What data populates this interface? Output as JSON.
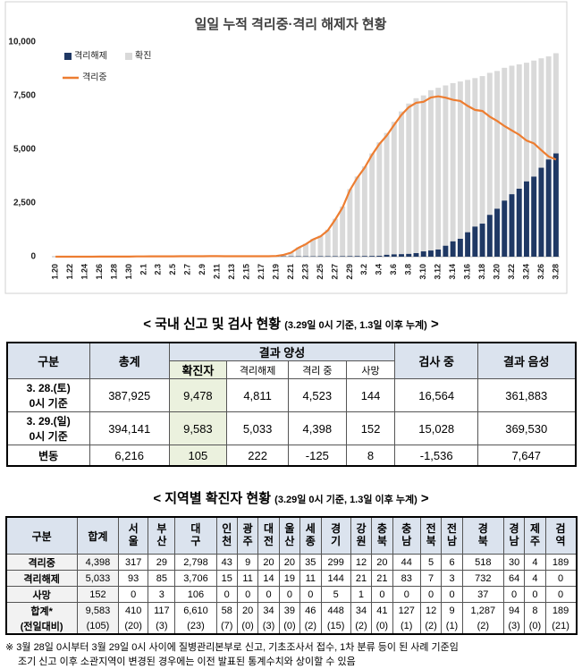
{
  "chart_data": {
    "type": "bar",
    "title": "일일 누적 격리중·격리 해제자 현황",
    "categories": [
      "1.20",
      null,
      "1.22",
      null,
      "1.24",
      null,
      "1.26",
      null,
      "1.28",
      null,
      "1.30",
      null,
      "2.1",
      null,
      "2.3",
      null,
      "2.5",
      null,
      "2.7",
      null,
      "2.9",
      null,
      "2.11",
      null,
      "2.13",
      null,
      "2.15",
      null,
      "2.17",
      null,
      "2.19",
      null,
      "2.21",
      null,
      "2.23",
      null,
      "2.25",
      null,
      "2.27",
      null,
      "2.29",
      null,
      "3.2",
      null,
      "3.4",
      null,
      "3.6",
      null,
      "3.8",
      null,
      "3.10",
      null,
      "3.12",
      null,
      "3.14",
      null,
      "3.16",
      null,
      "3.18",
      null,
      "3.20",
      null,
      "3.22",
      null,
      "3.24",
      null,
      "3.26",
      null,
      "3.28"
    ],
    "series": [
      {
        "name": "확진",
        "color": "#d9d9d9",
        "values": [
          1,
          1,
          1,
          1,
          2,
          2,
          3,
          4,
          4,
          4,
          6,
          11,
          12,
          15,
          15,
          16,
          19,
          23,
          24,
          24,
          25,
          27,
          28,
          28,
          28,
          28,
          28,
          29,
          30,
          31,
          51,
          104,
          204,
          433,
          602,
          833,
          977,
          1261,
          1766,
          2337,
          3150,
          3736,
          4212,
          4812,
          5328,
          5766,
          6284,
          6767,
          7134,
          7382,
          7513,
          7755,
          7869,
          7979,
          8086,
          8162,
          8236,
          8320,
          8413,
          8565,
          8652,
          8799,
          8897,
          8961,
          9037,
          9137,
          9241,
          9332,
          9478
        ]
      },
      {
        "name": "격리해제",
        "color": "#1f3864",
        "values": [
          0,
          0,
          0,
          0,
          0,
          0,
          0,
          0,
          0,
          0,
          0,
          0,
          0,
          0,
          0,
          0,
          1,
          2,
          3,
          3,
          3,
          3,
          4,
          7,
          7,
          9,
          9,
          9,
          10,
          12,
          16,
          16,
          17,
          18,
          18,
          18,
          22,
          22,
          22,
          24,
          27,
          30,
          31,
          34,
          41,
          88,
          108,
          118,
          130,
          166,
          247,
          288,
          333,
          510,
          714,
          834,
          1137,
          1401,
          1540,
          1947,
          2233,
          2612,
          2909,
          3166,
          3507,
          3730,
          4144,
          4528,
          4811
        ]
      },
      {
        "name": "격리중",
        "type": "line",
        "color": "#ed7d31",
        "values": [
          1,
          1,
          1,
          1,
          2,
          2,
          3,
          4,
          4,
          4,
          6,
          11,
          12,
          15,
          15,
          16,
          18,
          21,
          21,
          21,
          22,
          24,
          24,
          21,
          21,
          19,
          19,
          20,
          20,
          19,
          35,
          88,
          187,
          413,
          578,
          806,
          944,
          1224,
          1724,
          2291,
          3101,
          3674,
          4146,
          4740,
          5246,
          5640,
          6134,
          6606,
          6962,
          7170,
          7216,
          7411,
          7470,
          7407,
          7307,
          7256,
          7024,
          6838,
          6789,
          6527,
          6325,
          6085,
          5884,
          5684,
          5410,
          5281,
          4966,
          4665,
          4523
        ]
      }
    ],
    "ylim": [
      0,
      10000
    ],
    "yticks": [
      0,
      {
        "value": 2500,
        "label": "2,500"
      },
      {
        "value": 5000,
        "label": "5,000"
      },
      {
        "value": 7500,
        "label": "7,500"
      },
      {
        "value": 10000,
        "label": "10,000"
      }
    ],
    "grid": false
  },
  "table1": {
    "title": "< 국내 신고 및 검사 현황",
    "title_note": "(3.29일 0시 기준, 1.3일 이후 누계)",
    "title_end": ">",
    "header": {
      "group": "구분",
      "total": "총계",
      "positive": "결과 양성",
      "confirmed": "확진자",
      "released": "격리해제",
      "isolated": "격리 중",
      "deaths": "사망",
      "testing": "검사 중",
      "negative": "결과 음성"
    },
    "rows": [
      {
        "label": [
          "3. 28.(토)",
          "0시 기준"
        ],
        "cells": [
          "387,925",
          "9,478",
          "4,811",
          "4,523",
          "144",
          "16,564",
          "361,883"
        ]
      },
      {
        "label": [
          "3. 29.(일)",
          "0시 기준"
        ],
        "cells": [
          "394,141",
          "9,583",
          "5,033",
          "4,398",
          "152",
          "15,028",
          "369,530"
        ]
      },
      {
        "label": [
          "변동"
        ],
        "cells": [
          "6,216",
          "105",
          "222",
          "-125",
          "8",
          "-1,536",
          "7,647"
        ]
      }
    ]
  },
  "table2": {
    "title": "< 지역별 확진자 현황",
    "title_note": "(3.29일 0시 기준, 1.3일 이후 누계)",
    "title_end": ">",
    "header": [
      "구분",
      "합계",
      "서울",
      "부산",
      "대구",
      "인천",
      "광주",
      "대전",
      "울산",
      "세종",
      "경기",
      "강원",
      "충북",
      "충남",
      "전북",
      "전남",
      "경북",
      "경남",
      "제주",
      "검역"
    ],
    "rows": [
      {
        "label": "격리중",
        "cells": [
          "4,398",
          "317",
          "29",
          "2,798",
          "43",
          "9",
          "20",
          "20",
          "35",
          "299",
          "12",
          "20",
          "44",
          "5",
          "6",
          "518",
          "30",
          "4",
          "189"
        ]
      },
      {
        "label": "격리해제",
        "cells": [
          "5,033",
          "93",
          "85",
          "3,706",
          "15",
          "11",
          "14",
          "19",
          "11",
          "144",
          "21",
          "21",
          "83",
          "7",
          "3",
          "732",
          "64",
          "4",
          "0"
        ]
      },
      {
        "label": "사망",
        "cells": [
          "152",
          "0",
          "3",
          "106",
          "0",
          "0",
          "0",
          "0",
          "0",
          "5",
          "1",
          "0",
          "0",
          "0",
          "0",
          "37",
          "0",
          "0",
          "0"
        ]
      },
      {
        "label": "합계*",
        "cells": [
          "9,583",
          "410",
          "117",
          "6,610",
          "58",
          "20",
          "34",
          "39",
          "46",
          "448",
          "34",
          "41",
          "127",
          "12",
          "9",
          "1,287",
          "94",
          "8",
          "189"
        ]
      },
      {
        "label": "(전일대비)",
        "cells": [
          "(105)",
          "(20)",
          "(3)",
          "(23)",
          "(7)",
          "(0)",
          "(3)",
          "(0)",
          "(2)",
          "(15)",
          "(2)",
          "(0)",
          "(1)",
          "(2)",
          "(1)",
          "(2)",
          "(3)",
          "(0)",
          "(21)"
        ]
      }
    ]
  },
  "footnote": [
    "※ 3월 28일 0시부터 3월 29일 0시 사이에 질병관리본부로 신고, 기초조사서 접수, 1차 분류 등이 된 사례 기준임",
    "조기 신고 이후 소관지역이 변경된 경우에는 이전 발표된 통계수치와 상이할 수 있음"
  ]
}
